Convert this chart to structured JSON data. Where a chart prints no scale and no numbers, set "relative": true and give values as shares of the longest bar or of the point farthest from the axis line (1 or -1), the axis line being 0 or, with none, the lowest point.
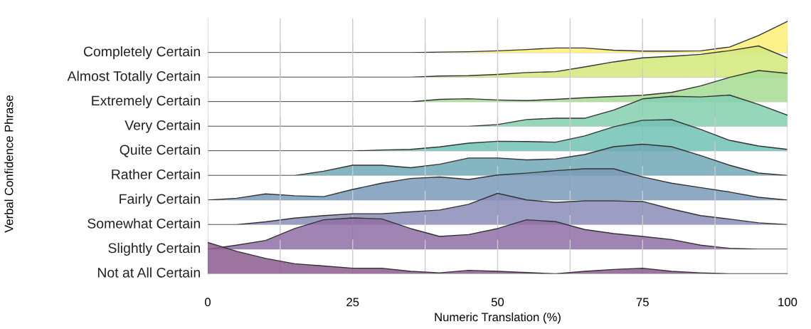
{
  "chart_data": [
    {
      "type": "area",
      "relative": true,
      "annotations": [
        "Verbal Confidence Phrase"
      ],
      "x": [
        0,
        5,
        10,
        15,
        20,
        25,
        30,
        35,
        40,
        45,
        50,
        55,
        60,
        65,
        70,
        75,
        80,
        85,
        90,
        95,
        100
      ],
      "xlim": [
        0,
        100
      ],
      "xticks": [
        0,
        {
          "value": 12.5,
          "label": null
        },
        25,
        {
          "value": 37.5,
          "label": null
        },
        50,
        {
          "value": 62.5,
          "label": null
        },
        75,
        {
          "value": 87.5,
          "label": null
        },
        100
      ],
      "tick_labels": false,
      "grid": "x",
      "series": [
        {
          "name": "Completely Certain",
          "color": "#fdef74",
          "values": [
            0,
            0,
            0,
            0,
            0,
            0,
            0,
            0,
            0.02,
            0.03,
            0.06,
            0.1,
            0.15,
            0.15,
            0.08,
            0.05,
            0.05,
            0.06,
            0.18,
            0.55,
            1.0
          ]
        }
      ]
    },
    {
      "type": "area",
      "relative": true,
      "x": [
        0,
        5,
        10,
        15,
        20,
        25,
        30,
        35,
        40,
        45,
        50,
        55,
        60,
        65,
        70,
        75,
        80,
        85,
        90,
        95,
        100
      ],
      "xlim": [
        0,
        100
      ],
      "xticks": [
        0,
        {
          "value": 12.5,
          "label": null
        },
        25,
        {
          "value": 37.5,
          "label": null
        },
        50,
        {
          "value": 62.5,
          "label": null
        },
        75,
        {
          "value": 87.5,
          "label": null
        },
        100
      ],
      "tick_labels": false,
      "grid": "x",
      "series": [
        {
          "name": "Almost Totally Certain",
          "color": "#d4e87a",
          "values": [
            0,
            0,
            0,
            0,
            0,
            0,
            0,
            0,
            0.04,
            0.05,
            0.09,
            0.15,
            0.18,
            0.33,
            0.49,
            0.62,
            0.67,
            0.73,
            0.85,
            1.0,
            0.62
          ]
        }
      ]
    },
    {
      "type": "area",
      "relative": true,
      "x": [
        0,
        5,
        10,
        15,
        20,
        25,
        30,
        35,
        40,
        45,
        50,
        55,
        60,
        65,
        70,
        75,
        80,
        85,
        90,
        95,
        100
      ],
      "xlim": [
        0,
        100
      ],
      "xticks": [
        0,
        {
          "value": 12.5,
          "label": null
        },
        25,
        {
          "value": 37.5,
          "label": null
        },
        50,
        {
          "value": 62.5,
          "label": null
        },
        75,
        {
          "value": 87.5,
          "label": null
        },
        100
      ],
      "tick_labels": false,
      "grid": "x",
      "series": [
        {
          "name": "Extremely Certain",
          "color": "#a4dc93",
          "values": [
            0,
            0,
            0,
            0,
            0,
            0,
            0,
            0,
            0.08,
            0.1,
            0.06,
            0.04,
            0.08,
            0.13,
            0.17,
            0.21,
            0.3,
            0.51,
            0.78,
            1.0,
            0.91
          ]
        }
      ]
    },
    {
      "type": "area",
      "relative": true,
      "x": [
        0,
        5,
        10,
        15,
        20,
        25,
        30,
        35,
        40,
        45,
        50,
        55,
        60,
        65,
        70,
        75,
        80,
        85,
        90,
        95,
        100
      ],
      "xlim": [
        0,
        100
      ],
      "xticks": [
        0,
        {
          "value": 12.5,
          "label": null
        },
        25,
        {
          "value": 37.5,
          "label": null
        },
        50,
        {
          "value": 62.5,
          "label": null
        },
        75,
        {
          "value": 87.5,
          "label": null
        },
        100
      ],
      "tick_labels": false,
      "grid": "x",
      "series": [
        {
          "name": "Very Certain",
          "color": "#84d0b0",
          "values": [
            0,
            0,
            0,
            0,
            0,
            0,
            0,
            0,
            0,
            0,
            0.06,
            0.22,
            0.26,
            0.26,
            0.52,
            0.88,
            0.96,
            0.94,
            1.0,
            0.7,
            0.36
          ]
        }
      ]
    },
    {
      "type": "area",
      "relative": true,
      "x": [
        0,
        5,
        10,
        15,
        20,
        25,
        30,
        35,
        40,
        45,
        50,
        55,
        60,
        65,
        70,
        75,
        80,
        85,
        90,
        95,
        100
      ],
      "xlim": [
        0,
        100
      ],
      "xticks": [
        0,
        {
          "value": 12.5,
          "label": null
        },
        25,
        {
          "value": 37.5,
          "label": null
        },
        50,
        {
          "value": 62.5,
          "label": null
        },
        75,
        {
          "value": 87.5,
          "label": null
        },
        100
      ],
      "tick_labels": false,
      "grid": "x",
      "series": [
        {
          "name": "Quite Certain",
          "color": "#72c1b4",
          "values": [
            0,
            0,
            0,
            0,
            0,
            0,
            0.03,
            0.05,
            0.13,
            0.25,
            0.31,
            0.3,
            0.28,
            0.48,
            0.77,
            0.98,
            1.0,
            0.69,
            0.34,
            0.16,
            0.05
          ]
        }
      ]
    },
    {
      "type": "area",
      "relative": true,
      "x": [
        0,
        5,
        10,
        15,
        20,
        25,
        30,
        35,
        40,
        45,
        50,
        55,
        60,
        65,
        70,
        75,
        80,
        85,
        90,
        95,
        100
      ],
      "xlim": [
        0,
        100
      ],
      "xticks": [
        0,
        {
          "value": 12.5,
          "label": null
        },
        25,
        {
          "value": 37.5,
          "label": null
        },
        50,
        {
          "value": 62.5,
          "label": null
        },
        75,
        {
          "value": 87.5,
          "label": null
        },
        100
      ],
      "tick_labels": false,
      "grid": "x",
      "series": [
        {
          "name": "Rather Certain",
          "color": "#6ea8b6",
          "values": [
            0,
            0,
            0,
            0,
            0.14,
            0.33,
            0.33,
            0.25,
            0.36,
            0.56,
            0.56,
            0.5,
            0.53,
            0.67,
            0.92,
            1.0,
            0.92,
            0.64,
            0.33,
            0.08,
            0
          ]
        }
      ]
    },
    {
      "type": "area",
      "relative": true,
      "x": [
        0,
        5,
        10,
        15,
        20,
        25,
        30,
        35,
        40,
        45,
        50,
        55,
        60,
        65,
        70,
        75,
        80,
        85,
        90,
        95,
        100
      ],
      "xlim": [
        0,
        100
      ],
      "xticks": [
        0,
        {
          "value": 12.5,
          "label": null
        },
        25,
        {
          "value": 37.5,
          "label": null
        },
        50,
        {
          "value": 62.5,
          "label": null
        },
        75,
        {
          "value": 87.5,
          "label": null
        },
        100
      ],
      "tick_labels": false,
      "grid": "x",
      "series": [
        {
          "name": "Fairly Certain",
          "color": "#7a9ab8",
          "values": [
            0,
            0.06,
            0.2,
            0.14,
            0.11,
            0.34,
            0.54,
            0.69,
            0.74,
            0.66,
            0.8,
            0.86,
            0.94,
            1.0,
            1.0,
            0.74,
            0.54,
            0.4,
            0.26,
            0.09,
            0
          ]
        }
      ]
    },
    {
      "type": "area",
      "relative": true,
      "x": [
        0,
        5,
        10,
        15,
        20,
        25,
        30,
        35,
        40,
        45,
        50,
        55,
        60,
        65,
        70,
        75,
        80,
        85,
        90,
        95,
        100
      ],
      "xlim": [
        0,
        100
      ],
      "xticks": [
        0,
        {
          "value": 12.5,
          "label": null
        },
        25,
        {
          "value": 37.5,
          "label": null
        },
        50,
        {
          "value": 62.5,
          "label": null
        },
        75,
        {
          "value": 87.5,
          "label": null
        },
        100
      ],
      "tick_labels": false,
      "grid": "x",
      "series": [
        {
          "name": "Somewhat Certain",
          "color": "#8a8cb8",
          "values": [
            0,
            0,
            0.09,
            0.21,
            0.29,
            0.35,
            0.35,
            0.41,
            0.47,
            0.65,
            1.0,
            0.79,
            0.71,
            0.76,
            0.76,
            0.74,
            0.5,
            0.29,
            0.18,
            0.06,
            0
          ]
        }
      ]
    },
    {
      "type": "area",
      "relative": true,
      "x": [
        0,
        5,
        10,
        15,
        20,
        25,
        30,
        35,
        40,
        45,
        50,
        55,
        60,
        65,
        70,
        75,
        80,
        85,
        90,
        95,
        100
      ],
      "xlim": [
        0,
        100
      ],
      "xticks": [
        0,
        {
          "value": 12.5,
          "label": null
        },
        25,
        {
          "value": 37.5,
          "label": null
        },
        50,
        {
          "value": 62.5,
          "label": null
        },
        75,
        {
          "value": 87.5,
          "label": null
        },
        100
      ],
      "tick_labels": false,
      "grid": "x",
      "series": [
        {
          "name": "Slightly Certain",
          "color": "#8f6fa6",
          "values": [
            0,
            0.13,
            0.28,
            0.66,
            0.94,
            1.0,
            0.97,
            0.66,
            0.41,
            0.47,
            0.66,
            0.94,
            0.88,
            0.63,
            0.5,
            0.41,
            0.31,
            0.13,
            0.03,
            0,
            0
          ]
        }
      ]
    },
    {
      "type": "area",
      "relative": true,
      "xlabel": "Numeric Translation (%)",
      "x": [
        0,
        5,
        10,
        15,
        20,
        25,
        30,
        35,
        40,
        45,
        50,
        55,
        60,
        65,
        70,
        75,
        80,
        85,
        90,
        95,
        100
      ],
      "xlim": [
        0,
        100
      ],
      "xticks": [
        0,
        {
          "value": 12.5,
          "label": null
        },
        25,
        {
          "value": 37.5,
          "label": null
        },
        50,
        {
          "value": 62.5,
          "label": null
        },
        75,
        {
          "value": 87.5,
          "label": null
        },
        100
      ],
      "tick_labels": "x",
      "grid": "x",
      "series": [
        {
          "name": "Not at All Certain",
          "color": "#8c5c8f",
          "values": [
            1.0,
            0.72,
            0.49,
            0.32,
            0.25,
            0.18,
            0.18,
            0.08,
            0.03,
            0.11,
            0.08,
            0.04,
            0,
            0.08,
            0.14,
            0.18,
            0.08,
            0.03,
            0,
            0,
            0
          ]
        }
      ]
    }
  ]
}
